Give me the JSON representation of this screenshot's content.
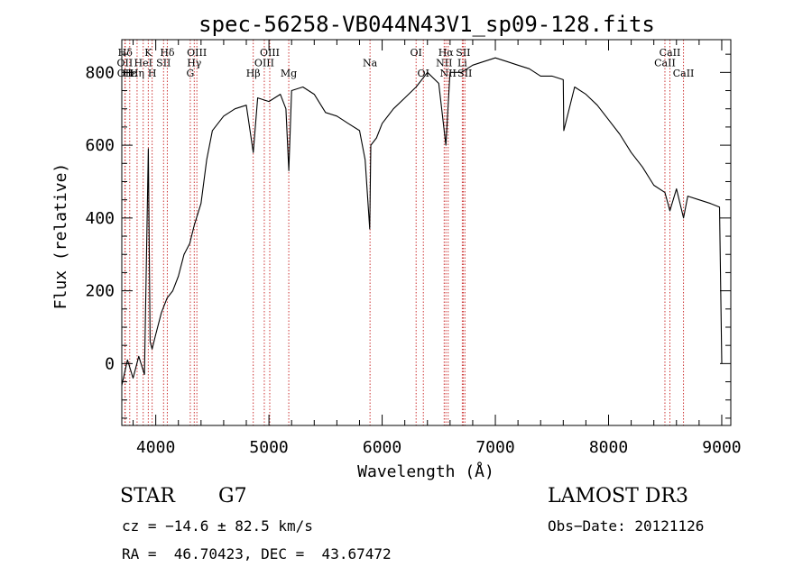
{
  "chart_data": {
    "type": "line",
    "title": "spec-56258-VB044N43V1_sp09-128.fits",
    "xlabel": "Wavelength (Å)",
    "ylabel": "Flux (relative)",
    "xlim": [
      3700,
      9080
    ],
    "ylim": [
      -170,
      890
    ],
    "xticks": [
      4000,
      5000,
      6000,
      7000,
      8000,
      9000
    ],
    "xtick_labels": [
      "4000",
      "5000",
      "6000",
      "7000",
      "8000",
      "9000"
    ],
    "yticks": [
      0,
      200,
      400,
      600,
      800
    ],
    "ytick_labels": [
      "0",
      "200",
      "400",
      "600",
      "800"
    ],
    "grid": false,
    "series": [
      {
        "name": "spectrum",
        "x": [
          3700,
          3750,
          3800,
          3850,
          3900,
          3934,
          3950,
          3968,
          4000,
          4050,
          4100,
          4150,
          4200,
          4250,
          4300,
          4340,
          4360,
          4400,
          4450,
          4500,
          4600,
          4700,
          4800,
          4861,
          4900,
          5000,
          5100,
          5150,
          5175,
          5200,
          5300,
          5400,
          5500,
          5600,
          5700,
          5800,
          5850,
          5890,
          5900,
          5950,
          6000,
          6100,
          6200,
          6300,
          6400,
          6500,
          6563,
          6600,
          6700,
          6800,
          6900,
          7000,
          7100,
          7200,
          7300,
          7400,
          7500,
          7600,
          7605,
          7700,
          7800,
          7900,
          8000,
          8100,
          8200,
          8300,
          8400,
          8498,
          8542,
          8600,
          8662,
          8700,
          8800,
          8900,
          8980,
          9000
        ],
        "y": [
          -60,
          10,
          -40,
          20,
          -30,
          590,
          60,
          40,
          80,
          140,
          180,
          200,
          240,
          300,
          330,
          380,
          400,
          440,
          560,
          640,
          680,
          700,
          710,
          580,
          730,
          720,
          740,
          700,
          530,
          750,
          760,
          740,
          690,
          680,
          660,
          640,
          560,
          370,
          600,
          620,
          660,
          700,
          730,
          760,
          800,
          770,
          600,
          800,
          800,
          820,
          830,
          840,
          830,
          820,
          810,
          790,
          790,
          780,
          640,
          760,
          740,
          710,
          670,
          630,
          580,
          540,
          490,
          470,
          420,
          480,
          400,
          460,
          450,
          440,
          430,
          0
        ]
      }
    ],
    "lines": [
      {
        "label": "Hδ",
        "x": 3730,
        "row": 0
      },
      {
        "label": "OII",
        "x": 3727,
        "row": 1
      },
      {
        "label": "OII",
        "x": 3729,
        "row": 2
      },
      {
        "label": "Hε",
        "x": 3770,
        "row": 2
      },
      {
        "label": "K",
        "x": 3934,
        "row": 0
      },
      {
        "label": "HeI",
        "x": 3889,
        "row": 1
      },
      {
        "label": "H",
        "x": 3968,
        "row": 2
      },
      {
        "label": "Hη",
        "x": 3835,
        "row": 2
      },
      {
        "label": "Hδ",
        "x": 4102,
        "row": 0
      },
      {
        "label": "SII",
        "x": 4069,
        "row": 1
      },
      {
        "label": "OIII",
        "x": 4363,
        "row": 0
      },
      {
        "label": "Hγ",
        "x": 4340,
        "row": 1
      },
      {
        "label": "G",
        "x": 4305,
        "row": 2
      },
      {
        "label": "Hβ",
        "x": 4861,
        "row": 2
      },
      {
        "label": "OIII",
        "x": 4959,
        "row": 1
      },
      {
        "label": "OIII",
        "x": 5007,
        "row": 0
      },
      {
        "label": "Mg",
        "x": 5175,
        "row": 2
      },
      {
        "label": "Na",
        "x": 5893,
        "row": 1
      },
      {
        "label": "OI",
        "x": 6300,
        "row": 0
      },
      {
        "label": "OI",
        "x": 6364,
        "row": 2
      },
      {
        "label": "NII",
        "x": 6548,
        "row": 1
      },
      {
        "label": "Hα",
        "x": 6563,
        "row": 0
      },
      {
        "label": "NII",
        "x": 6583,
        "row": 2
      },
      {
        "label": "SII",
        "x": 6716,
        "row": 0
      },
      {
        "label": "Li",
        "x": 6708,
        "row": 1
      },
      {
        "label": "SII",
        "x": 6731,
        "row": 2
      },
      {
        "label": "CaII",
        "x": 8498,
        "row": 1
      },
      {
        "label": "CaII",
        "x": 8542,
        "row": 0
      },
      {
        "label": "CaII",
        "x": 8662,
        "row": 2
      }
    ]
  },
  "info": {
    "class_label": "STAR",
    "subclass_label": "G7",
    "survey": "LAMOST DR3",
    "cz": "cz = −14.6 ± 82.5 km/s",
    "obs_date": "Obs−Date: 20121126",
    "coords": "RA =  46.70423, DEC =  43.67472"
  },
  "colors": {
    "spectrum": "#000000",
    "line_markers": "#cc3333",
    "axes": "#000000"
  }
}
